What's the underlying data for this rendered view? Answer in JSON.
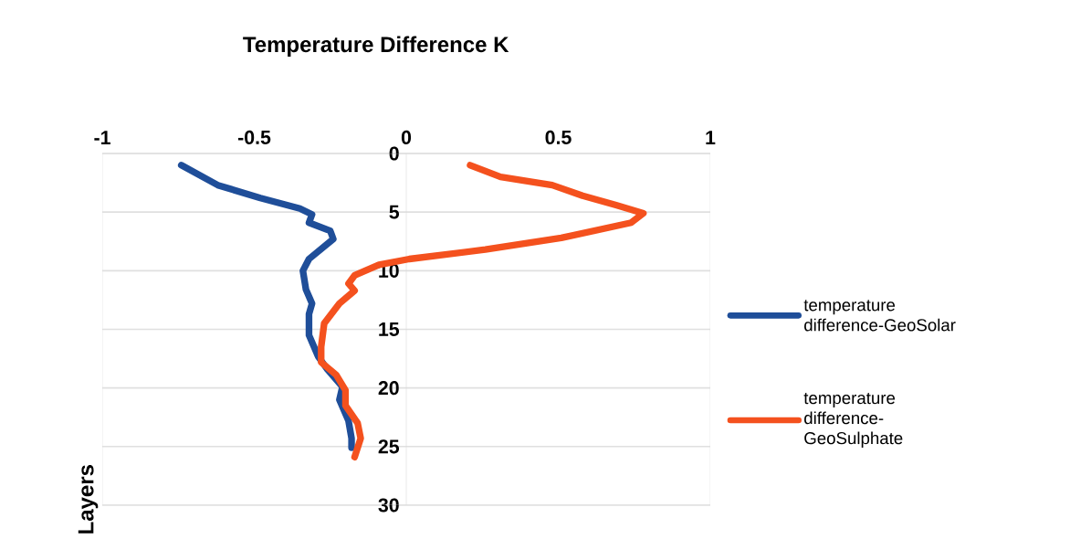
{
  "chart_data": {
    "type": "line",
    "title": "Temperature Difference K",
    "ylabel": "Layers",
    "xlim": [
      -1,
      1
    ],
    "xticks": [
      -1,
      -0.5,
      0,
      0.5,
      1
    ],
    "ylim": [
      30,
      0
    ],
    "yticks": [
      0,
      5,
      10,
      15,
      20,
      25,
      30
    ],
    "grid": "y",
    "legend": "right",
    "line_style": "solid",
    "series": [
      {
        "name": "temperature difference-GeoSolar",
        "color": "#1f4e99",
        "x": [
          -0.74,
          -0.62,
          -0.48,
          -0.35,
          -0.31,
          -0.32,
          -0.25,
          -0.24,
          -0.32,
          -0.34,
          -0.33,
          -0.31,
          -0.32,
          -0.32,
          -0.29,
          -0.26,
          -0.21,
          -0.22,
          -0.19,
          -0.18,
          -0.18
        ],
        "values": [
          1,
          2.7,
          3.8,
          4.7,
          5.2,
          5.9,
          6.6,
          7.3,
          9,
          10,
          11.6,
          12.8,
          13.7,
          15.5,
          17.3,
          18.4,
          19.9,
          21,
          22.8,
          24.3,
          25.1
        ]
      },
      {
        "name": "temperature difference-GeoSulphate",
        "color": "#f4511e",
        "x": [
          0.21,
          0.31,
          0.48,
          0.58,
          0.69,
          0.78,
          0.74,
          0.51,
          0.26,
          0.01,
          -0.09,
          -0.17,
          -0.19,
          -0.17,
          -0.22,
          -0.27,
          -0.28,
          -0.28,
          -0.23,
          -0.2,
          -0.2,
          -0.16,
          -0.15,
          -0.17
        ],
        "values": [
          1,
          2,
          2.7,
          3.6,
          4.4,
          5.1,
          5.9,
          7.2,
          8.2,
          9,
          9.5,
          10.4,
          11.1,
          11.7,
          12.8,
          14.5,
          16.5,
          17.8,
          18.9,
          20.2,
          21.5,
          23,
          24.3,
          25.9
        ]
      }
    ]
  }
}
